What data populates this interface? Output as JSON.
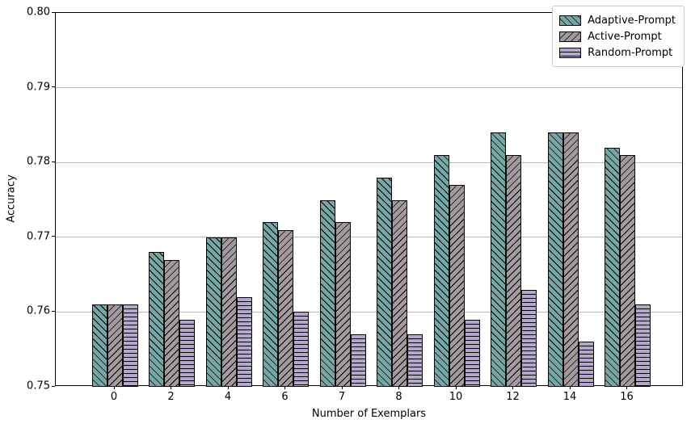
{
  "chart_data": {
    "type": "bar",
    "title": "",
    "xlabel": "Number of Exemplars",
    "ylabel": "Accuracy",
    "categories": [
      "0",
      "2",
      "4",
      "6",
      "7",
      "8",
      "10",
      "12",
      "14",
      "16"
    ],
    "series": [
      {
        "name": "Adaptive-Prompt",
        "color": "#76a7a4",
        "hatch": "forward-diagonal",
        "values": [
          0.761,
          0.768,
          0.77,
          0.772,
          0.775,
          0.778,
          0.781,
          0.784,
          0.784,
          0.782
        ]
      },
      {
        "name": "Active-Prompt",
        "color": "#a29a9e",
        "hatch": "backward-diagonal",
        "values": [
          0.761,
          0.767,
          0.77,
          0.771,
          0.772,
          0.775,
          0.777,
          0.781,
          0.784,
          0.781
        ]
      },
      {
        "name": "Random-Prompt",
        "color": "#b3a8c9",
        "hatch": "horizontal",
        "values": [
          0.761,
          0.759,
          0.762,
          0.76,
          0.757,
          0.757,
          0.759,
          0.763,
          0.756,
          0.761
        ]
      }
    ],
    "ylim": [
      0.75,
      0.8
    ],
    "yticks": [
      0.75,
      0.76,
      0.77,
      0.78,
      0.79,
      0.8
    ],
    "ytick_labels": [
      "0.75",
      "0.76",
      "0.77",
      "0.78",
      "0.79",
      "0.80"
    ],
    "grid": "horizontal",
    "grid_color": "#b9b9b9",
    "edge_color": "#000000",
    "legend_position": "upper-right"
  }
}
